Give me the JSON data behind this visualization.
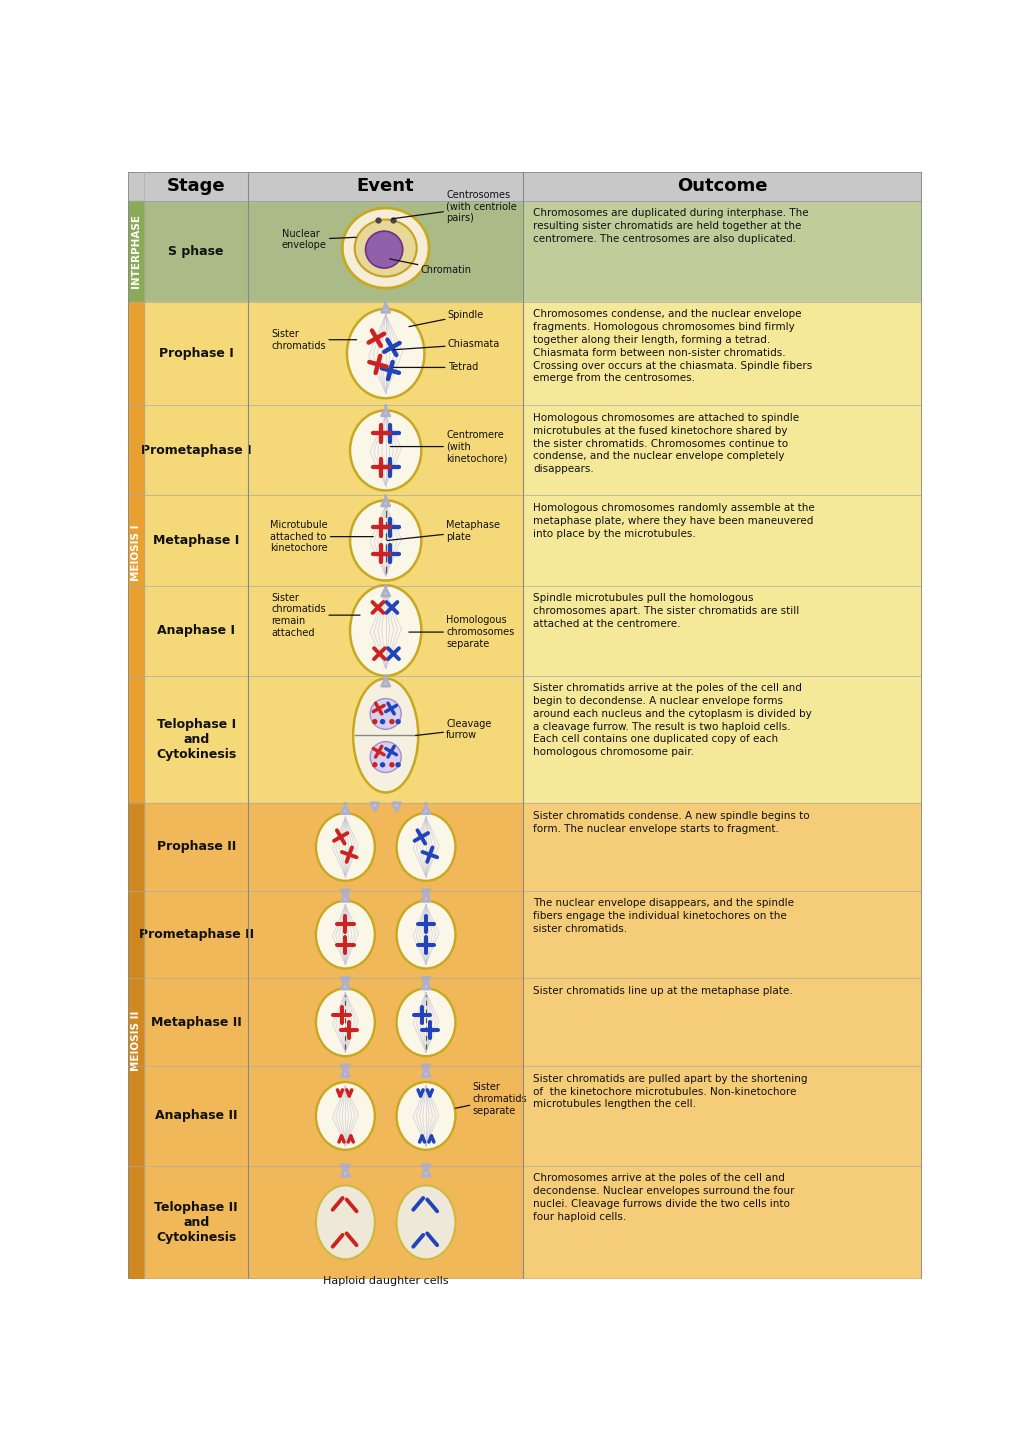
{
  "header_bg": "#c8c8c8",
  "col_headers": [
    "Stage",
    "Event",
    "Outcome"
  ],
  "interphase_bg": "#aabb88",
  "interphase_outcome_bg": "#c0cc9a",
  "meiosis1_bg": "#f5d878",
  "meiosis1_outcome_bg": "#f5e898",
  "meiosis2_bg": "#f0b858",
  "meiosis2_outcome_bg": "#f5cc78",
  "sidebar_interphase": "#8aaa58",
  "sidebar_meiosis1": "#e8a030",
  "sidebar_meiosis2": "#d08820",
  "cell_fill": "#faf6e8",
  "cell_fill2": "#f0ece0",
  "cell_border": "#c8a820",
  "spindle_color": "#c8c8d8",
  "red_chr": "#cc2222",
  "blue_chr": "#2244bb",
  "nucleus_fill": "#9060aa",
  "text_color": "#111111",
  "arrow_color": "#b8b8d0",
  "stages": [
    {
      "name": "S phase",
      "section": "INTERPHASE",
      "outcome": "Chromosomes are duplicated during interphase. The\nresulting sister chromatids are held together at the\ncentromere. The centrosomes are also duplicated."
    },
    {
      "name": "Prophase I",
      "section": "MEIOSIS I",
      "outcome": "Chromosomes condense, and the nuclear envelope\nfragments. Homologous chromosomes bind firmly\ntogether along their length, forming a tetrad.\nChiasmata form between non-sister chromatids.\nCrossing over occurs at the chiasmata. Spindle fibers\nemerge from the centrosomes."
    },
    {
      "name": "Prometaphase I",
      "section": "MEIOSIS I",
      "outcome": "Homologous chromosomes are attached to spindle\nmicrotubules at the fused kinetochore shared by\nthe sister chromatids. Chromosomes continue to\ncondense, and the nuclear envelope completely\ndisappears."
    },
    {
      "name": "Metaphase I",
      "section": "MEIOSIS I",
      "outcome": "Homologous chromosomes randomly assemble at the\nmetaphase plate, where they have been maneuvered\ninto place by the microtubules."
    },
    {
      "name": "Anaphase I",
      "section": "MEIOSIS I",
      "outcome": "Spindle microtubules pull the homologous\nchromosomes apart. The sister chromatids are still\nattached at the centromere."
    },
    {
      "name": "Telophase I\nand\nCytokinesis",
      "section": "MEIOSIS I",
      "outcome": "Sister chromatids arrive at the poles of the cell and\nbegin to decondense. A nuclear envelope forms\naround each nucleus and the cytoplasm is divided by\na cleavage furrow. The result is two haploid cells.\nEach cell contains one duplicated copy of each\nhomologous chromosome pair."
    },
    {
      "name": "Prophase II",
      "section": "MEIOSIS II",
      "outcome": "Sister chromatids condense. A new spindle begins to\nform. The nuclear envelope starts to fragment."
    },
    {
      "name": "Prometaphase II",
      "section": "MEIOSIS II",
      "outcome": "The nuclear envelope disappears, and the spindle\nfibers engage the individual kinetochores on the\nsister chromatids."
    },
    {
      "name": "Metaphase II",
      "section": "MEIOSIS II",
      "outcome": "Sister chromatids line up at the metaphase plate."
    },
    {
      "name": "Anaphase II",
      "section": "MEIOSIS II",
      "outcome": "Sister chromatids are pulled apart by the shortening\nof  the kinetochore microtubules. Non-kinetochore\nmicrotubules lengthen the cell."
    },
    {
      "name": "Telophase II\nand\nCytokinesis",
      "section": "MEIOSIS II",
      "outcome": "Chromosomes arrive at the poles of the cell and\ndecondense. Nuclear envelopes surround the four\nnuclei. Cleavage furrows divide the two cells into\nfour haploid cells."
    }
  ]
}
